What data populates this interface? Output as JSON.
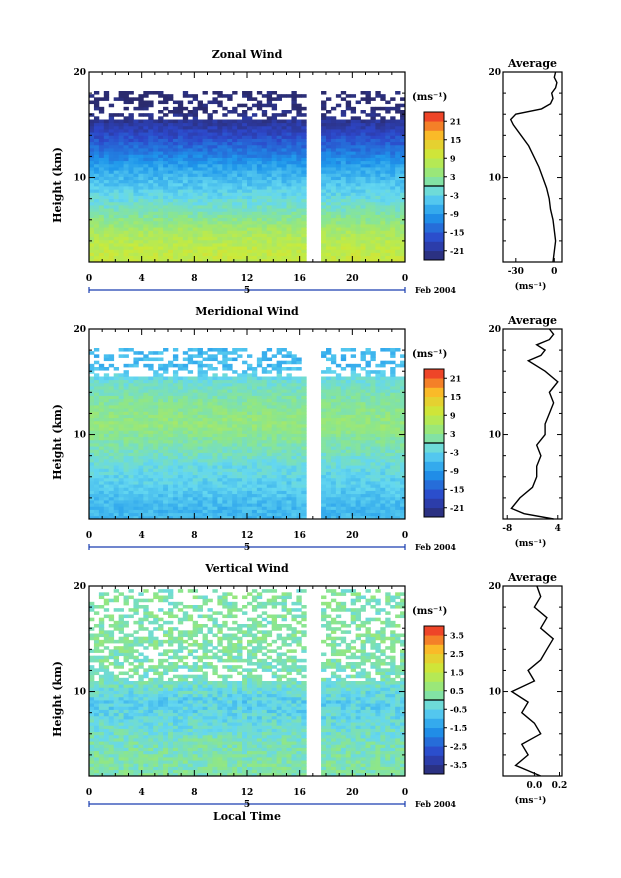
{
  "chart_data": [
    {
      "type": "heatmap",
      "title": "Zonal Wind",
      "ylabel": "Height (km)",
      "xlabel": "",
      "x_ticks": [
        "0",
        "4",
        "8",
        "12",
        "16",
        "20",
        "0"
      ],
      "y_ticks": [
        "20",
        "10"
      ],
      "xlim": [
        0,
        24
      ],
      "ylim": [
        2,
        20
      ],
      "date_day": "5",
      "date_label": "Feb 2004",
      "colorbar": {
        "unit": "(ms⁻¹)",
        "ticks": [
          "21",
          "15",
          "9",
          "3",
          "-3",
          "-9",
          "-15",
          "-21"
        ],
        "range": [
          -24,
          24
        ]
      },
      "field_levels": [
        {
          "h": 3,
          "v": 9
        },
        {
          "h": 5,
          "v": 6
        },
        {
          "h": 7,
          "v": 0
        },
        {
          "h": 9,
          "v": -4
        },
        {
          "h": 11,
          "v": -8
        },
        {
          "h": 13,
          "v": -14
        },
        {
          "h": 15,
          "v": -20
        },
        {
          "h": 16.5,
          "v": -24
        }
      ],
      "gap_local_time": [
        16.6,
        17.6
      ],
      "profile": {
        "title": "Average",
        "xlabel": "(ms⁻¹)",
        "x_ticks": [
          "-30",
          "0"
        ],
        "xlim": [
          -40,
          6
        ],
        "y_ticks": [
          "20",
          "10"
        ],
        "height": [
          2,
          3,
          4,
          5,
          6,
          7,
          8,
          9,
          10,
          11,
          12,
          13,
          14,
          15,
          15.5,
          16,
          16.5,
          17,
          17.5,
          18,
          18.5,
          19,
          19.5,
          20
        ],
        "value": [
          -1,
          0,
          1,
          0,
          -1,
          -3,
          -4,
          -6,
          -9,
          -12,
          -16,
          -20,
          -26,
          -32,
          -34,
          -30,
          -10,
          -3,
          -1,
          -2,
          1,
          2,
          0,
          1
        ]
      }
    },
    {
      "type": "heatmap",
      "title": "Meridional Wind",
      "ylabel": "Height (km)",
      "xlabel": "",
      "x_ticks": [
        "0",
        "4",
        "8",
        "12",
        "16",
        "20",
        "0"
      ],
      "y_ticks": [
        "20",
        "10"
      ],
      "xlim": [
        0,
        24
      ],
      "ylim": [
        2,
        20
      ],
      "date_day": "5",
      "date_label": "Feb 2004",
      "colorbar": {
        "unit": "(ms⁻¹)",
        "ticks": [
          "21",
          "15",
          "9",
          "3",
          "-3",
          "-9",
          "-15",
          "-21"
        ],
        "range": [
          -24,
          24
        ]
      },
      "field_levels": [
        {
          "h": 3,
          "v": -6
        },
        {
          "h": 5,
          "v": -4
        },
        {
          "h": 7,
          "v": -2
        },
        {
          "h": 9,
          "v": 1
        },
        {
          "h": 11,
          "v": 4
        },
        {
          "h": 13,
          "v": 2
        },
        {
          "h": 15,
          "v": -1
        },
        {
          "h": 16.5,
          "v": -6
        }
      ],
      "gap_local_time": [
        16.6,
        17.6
      ],
      "profile": {
        "title": "Average",
        "xlabel": "(ms⁻¹)",
        "x_ticks": [
          "-8",
          "4"
        ],
        "xlim": [
          -9,
          5
        ],
        "y_ticks": [
          "20",
          "10"
        ],
        "height": [
          2,
          2.5,
          3,
          4,
          5,
          6,
          7,
          8,
          9,
          10,
          11,
          12,
          13,
          14,
          15,
          16,
          17,
          17.5,
          18,
          18.5,
          19,
          19.5,
          20
        ],
        "value": [
          3,
          -4,
          -7,
          -5,
          -2,
          -1,
          -1,
          0,
          -1,
          1,
          1,
          2,
          3,
          2,
          4,
          1,
          -3,
          0,
          1,
          -1,
          2,
          3,
          2
        ]
      }
    },
    {
      "type": "heatmap",
      "title": "Vertical Wind",
      "ylabel": "Height (km)",
      "xlabel": "Local Time",
      "x_ticks": [
        "0",
        "4",
        "8",
        "12",
        "16",
        "20",
        "0"
      ],
      "y_ticks": [
        "20",
        "10"
      ],
      "xlim": [
        0,
        24
      ],
      "ylim": [
        2,
        20
      ],
      "date_day": "5",
      "date_label": "Feb 2004",
      "colorbar": {
        "unit": "(ms⁻¹)",
        "ticks": [
          "3.5",
          "2.5",
          "1.5",
          "0.5",
          "-0.5",
          "-1.5",
          "-2.5",
          "-3.5"
        ],
        "range": [
          -4,
          4
        ]
      },
      "field_levels": [
        {
          "h": 3,
          "v": 0.2
        },
        {
          "h": 5,
          "v": 0.1
        },
        {
          "h": 7,
          "v": -0.3
        },
        {
          "h": 9,
          "v": -0.6
        },
        {
          "h": 11,
          "v": 0.0
        },
        {
          "h": 13,
          "v": 0.2
        },
        {
          "h": 15,
          "v": 0.3
        },
        {
          "h": 17,
          "v": 0.2
        }
      ],
      "gap_local_time": [
        16.6,
        17.6
      ],
      "profile": {
        "title": "Average",
        "xlabel": "(ms⁻¹)",
        "x_ticks": [
          "0.0",
          "0.2"
        ],
        "xlim": [
          -0.25,
          0.22
        ],
        "y_ticks": [
          "20",
          "10"
        ],
        "height": [
          2,
          3,
          4,
          5,
          6,
          7,
          8,
          9,
          10,
          11,
          12,
          13,
          14,
          15,
          16,
          17,
          18,
          19,
          20
        ],
        "value": [
          0.05,
          -0.15,
          -0.05,
          -0.1,
          0.05,
          0.0,
          -0.1,
          -0.05,
          -0.18,
          0.0,
          -0.05,
          0.05,
          0.1,
          0.15,
          0.05,
          0.1,
          0.0,
          0.05,
          0.02
        ]
      }
    }
  ]
}
